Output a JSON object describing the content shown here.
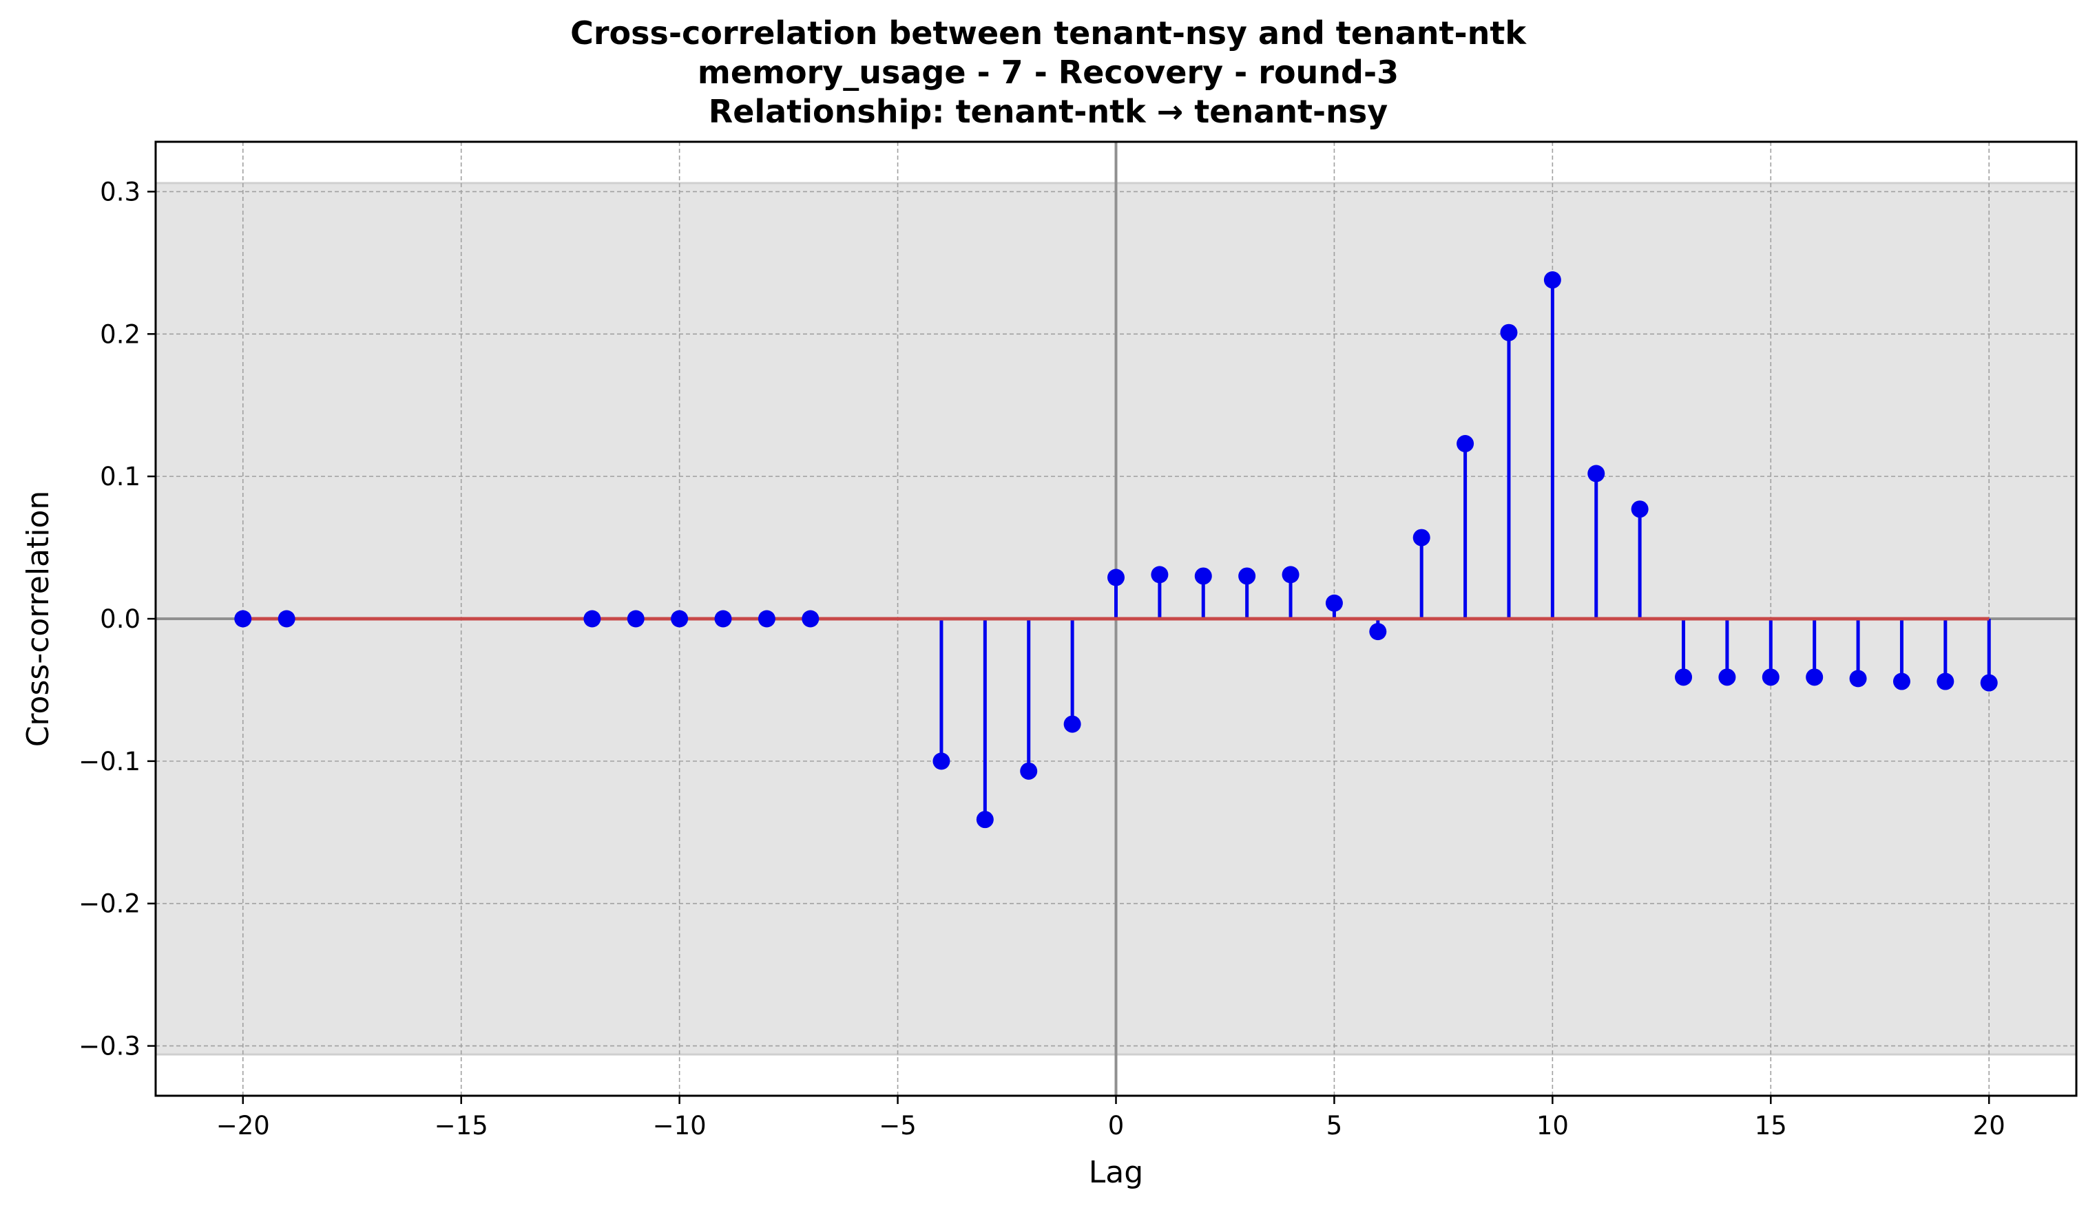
{
  "chart_data": {
    "type": "stem",
    "title": [
      "Cross-correlation between tenant-nsy and tenant-ntk",
      "memory_usage - 7 - Recovery - round-3",
      "Relationship: tenant-ntk → tenant-nsy"
    ],
    "xlabel": "Lag",
    "ylabel": "Cross-correlation",
    "xlim": [
      -22,
      22
    ],
    "ylim": [
      -0.335,
      0.335
    ],
    "xticks": [
      -20,
      -15,
      -10,
      -5,
      0,
      5,
      10,
      15,
      20
    ],
    "xtick_labels": [
      "−20",
      "−15",
      "−10",
      "−5",
      "0",
      "5",
      "10",
      "15",
      "20"
    ],
    "yticks": [
      -0.3,
      -0.2,
      -0.1,
      0.0,
      0.1,
      0.2,
      0.3
    ],
    "ytick_labels": [
      "−0.3",
      "−0.2",
      "−0.1",
      "0.0",
      "0.1",
      "0.2",
      "0.3"
    ],
    "grid": true,
    "confidence_band": [
      -0.306,
      0.306
    ],
    "baseline": 0,
    "colors": {
      "stem": "#0000ee",
      "marker": "#0000ee",
      "baseline": "#c84848",
      "band": "#e4e4e4",
      "zero_line": "#909090",
      "grid": "#a0a0a0"
    },
    "series": [
      {
        "x": [
          -20,
          -19,
          -12,
          -11,
          -10,
          -9,
          -8,
          -7,
          -4,
          -3,
          -2,
          -1,
          0,
          1,
          2,
          3,
          4,
          5,
          6,
          7,
          8,
          9,
          10,
          11,
          12,
          13,
          14,
          15,
          16,
          17,
          18,
          19,
          20
        ],
        "y": [
          0.0,
          0.0,
          0.0,
          0.0,
          0.0,
          0.0,
          0.0,
          0.0,
          -0.1,
          -0.141,
          -0.107,
          -0.074,
          0.029,
          0.031,
          0.03,
          0.03,
          0.031,
          0.011,
          -0.009,
          0.057,
          0.123,
          0.201,
          0.238,
          0.102,
          0.077,
          -0.041,
          -0.041,
          -0.041,
          -0.041,
          -0.042,
          -0.044,
          -0.044,
          -0.045
        ]
      }
    ]
  }
}
